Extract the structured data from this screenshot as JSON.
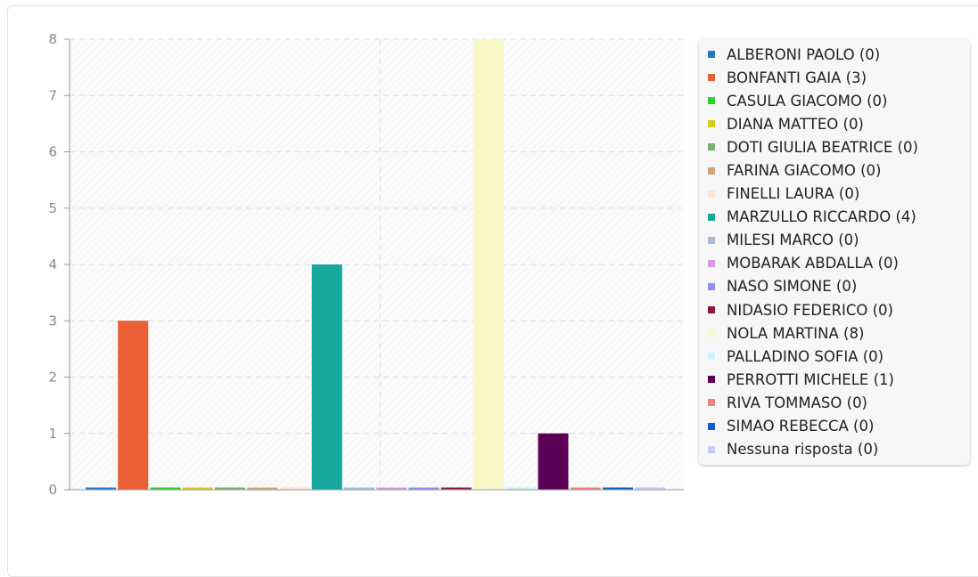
{
  "chart_data": {
    "type": "bar",
    "title": "",
    "xlabel": "",
    "ylabel": "",
    "ylim": [
      0,
      8
    ],
    "y_ticks": [
      "0",
      "1",
      "2",
      "3",
      "4",
      "5",
      "6",
      "7",
      "8"
    ],
    "grid": true,
    "legend_position": "right",
    "series": [
      {
        "name": "ALBERONI PAOLO (0)",
        "value": 0,
        "color": "#1f78c8"
      },
      {
        "name": "BONFANTI GAIA (3)",
        "value": 3,
        "color": "#ea5f33"
      },
      {
        "name": "CASULA GIACOMO (0)",
        "value": 0,
        "color": "#33cc33"
      },
      {
        "name": "DIANA MATTEO (0)",
        "value": 0,
        "color": "#d6cc1a"
      },
      {
        "name": "DOTI GIULIA BEATRICE (0)",
        "value": 0,
        "color": "#77b06f"
      },
      {
        "name": "FARINA GIACOMO (0)",
        "value": 0,
        "color": "#d2a679"
      },
      {
        "name": "FINELLI LAURA (0)",
        "value": 0,
        "color": "#fce3d8"
      },
      {
        "name": "MARZULLO RICCARDO (4)",
        "value": 4,
        "color": "#17a89e"
      },
      {
        "name": "MILESI MARCO (0)",
        "value": 0,
        "color": "#a9bcd6"
      },
      {
        "name": "MOBARAK ABDALLA (0)",
        "value": 0,
        "color": "#d39ce0"
      },
      {
        "name": "NASO SIMONE (0)",
        "value": 0,
        "color": "#8f8ff2"
      },
      {
        "name": "NIDASIO FEDERICO (0)",
        "value": 0,
        "color": "#8b1a45"
      },
      {
        "name": "NOLA MARTINA (8)",
        "value": 8,
        "color": "#f9f8c7"
      },
      {
        "name": "PALLADINO SOFIA (0)",
        "value": 0,
        "color": "#ccf4f7"
      },
      {
        "name": "PERROTTI MICHELE (1)",
        "value": 1,
        "color": "#5c0057"
      },
      {
        "name": "RIVA TOMMASO (0)",
        "value": 0,
        "color": "#f2807d"
      },
      {
        "name": "SIMAO REBECCA (0)",
        "value": 0,
        "color": "#0a5fc0"
      },
      {
        "name": "Nessuna risposta (0)",
        "value": 0,
        "color": "#c5ccf7"
      }
    ]
  }
}
